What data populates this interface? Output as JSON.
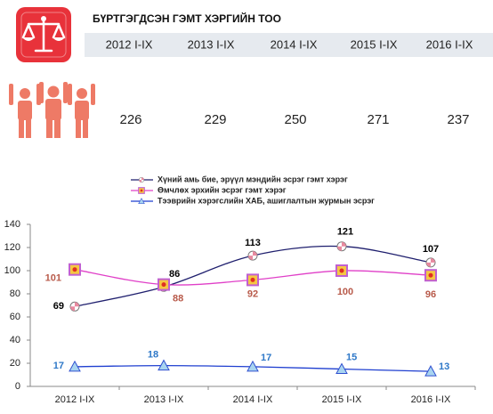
{
  "summary": {
    "title": "БҮРТГЭГДСЭН ГЭМТ ХЭРГИЙН ТОО",
    "periods": [
      "2012 I-IX",
      "2013 I-IX",
      "2014 I-IX",
      "2015 I-IX",
      "2016 I-IX"
    ],
    "totals": [
      "226",
      "229",
      "250",
      "271",
      "237"
    ]
  },
  "chart_data": {
    "type": "line",
    "categories": [
      "2012 I-IX",
      "2013 I-IX",
      "2014 I-IX",
      "2015 I-IX",
      "2016 I-IX"
    ],
    "series": [
      {
        "name": "Хүний амь бие, эрүүл мэндийн эсрэг гэмт хэрэг",
        "color": "#1f1f6e",
        "marker": "circle",
        "label_color": "#000000",
        "values": [
          69,
          86,
          113,
          121,
          107
        ]
      },
      {
        "name": "Өмчлөх эрхийн эсрэг гэмт хэрэг",
        "color": "#e040c8",
        "marker": "square",
        "label_color": "#b85a4a",
        "values": [
          101,
          88,
          92,
          100,
          96
        ]
      },
      {
        "name": "Тээврийн хэрэгслийн ХАБ, ашиглалтын журмын эсрэг",
        "color": "#1f3fd0",
        "marker": "triangle",
        "label_color": "#2e78c8",
        "values": [
          17,
          18,
          17,
          15,
          13
        ]
      }
    ],
    "ylim": [
      0,
      140
    ],
    "yticks": [
      0,
      20,
      40,
      60,
      80,
      100,
      120,
      140
    ]
  }
}
